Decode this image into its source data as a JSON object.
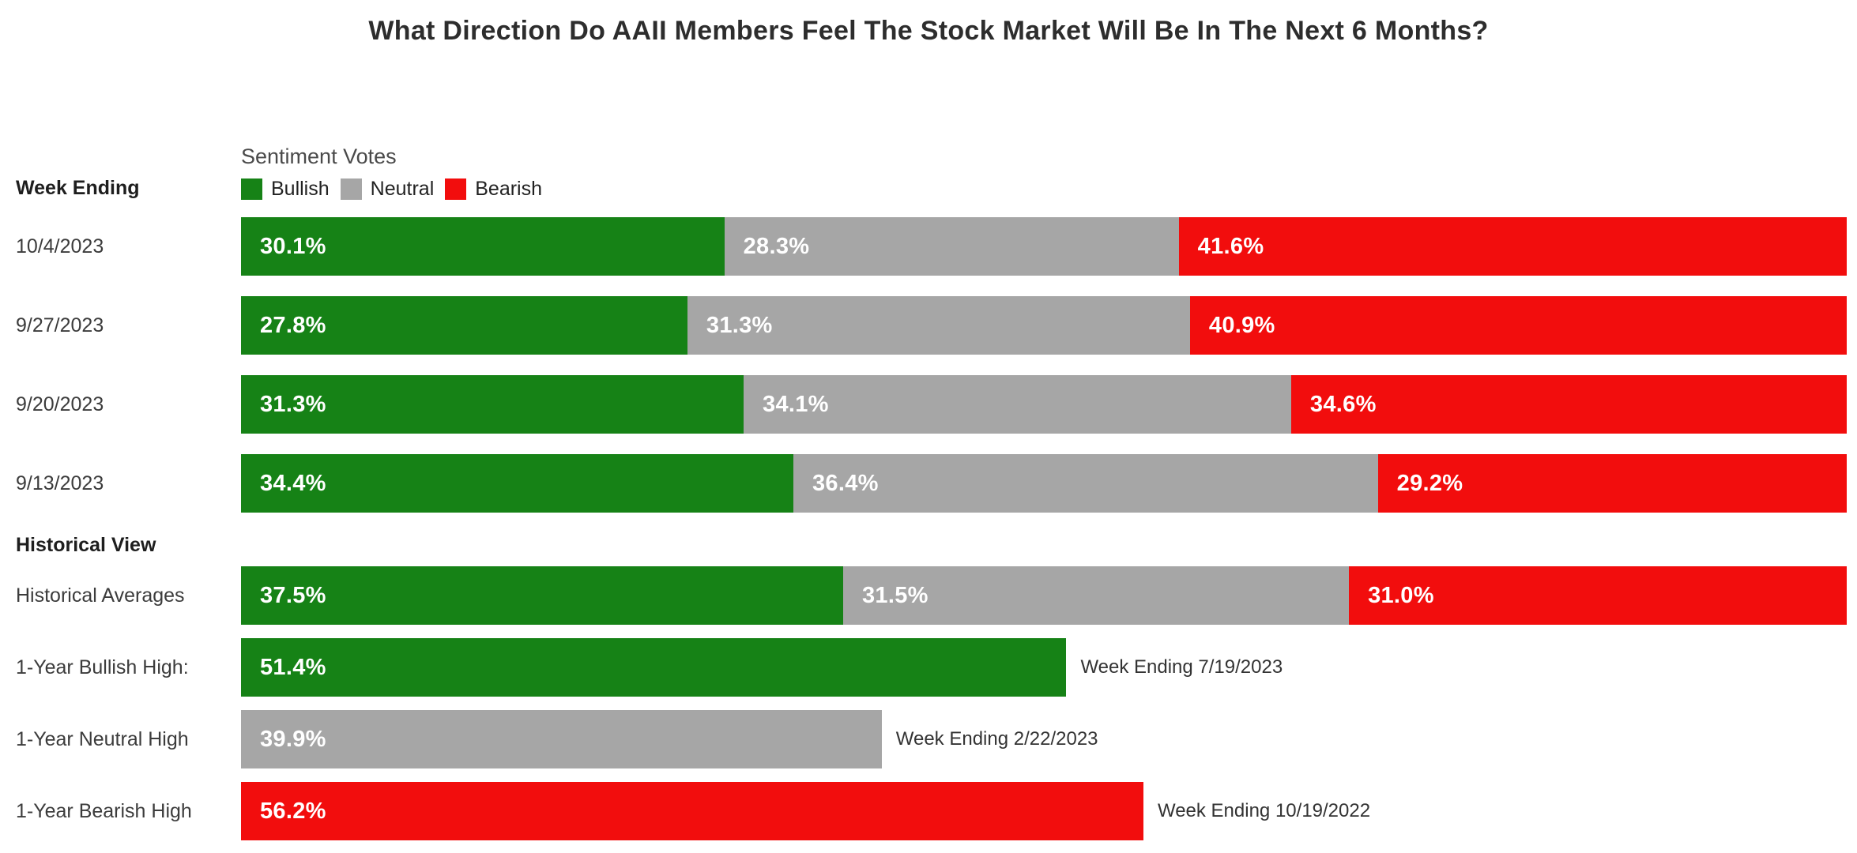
{
  "labels": {
    "week_ending": "Week Ending",
    "historical_view": "Historical View"
  },
  "chart_data": {
    "type": "bar",
    "orientation": "horizontal",
    "stacked": true,
    "grid": false,
    "xlim": [
      0,
      100
    ],
    "title": "What Direction Do AAII Members Feel The Stock Market Will Be In The Next 6 Months?",
    "legend_title": "Sentiment Votes",
    "legend_position": "top",
    "value_suffix": "%",
    "series": [
      {
        "key": "bullish",
        "name": "Bullish",
        "color": "#168216"
      },
      {
        "key": "neutral",
        "name": "Neutral",
        "color": "#a6a6a6"
      },
      {
        "key": "bearish",
        "name": "Bearish",
        "color": "#f20d0d"
      }
    ],
    "week_rows": [
      {
        "label": "10/4/2023",
        "bullish": 30.1,
        "neutral": 28.3,
        "bearish": 41.6
      },
      {
        "label": "9/27/2023",
        "bullish": 27.8,
        "neutral": 31.3,
        "bearish": 40.9
      },
      {
        "label": "9/20/2023",
        "bullish": 31.3,
        "neutral": 34.1,
        "bearish": 34.6
      },
      {
        "label": "9/13/2023",
        "bullish": 34.4,
        "neutral": 36.4,
        "bearish": 29.2
      }
    ],
    "historical_rows": [
      {
        "label": "Historical Averages",
        "kind": "stacked",
        "bullish": 37.5,
        "neutral": 31.5,
        "bearish": 31.0
      },
      {
        "label": "1-Year Bullish High:",
        "kind": "single",
        "series": "bullish",
        "value": 51.4,
        "annotation": "Week Ending 7/19/2023"
      },
      {
        "label": "1-Year Neutral High",
        "kind": "single",
        "series": "neutral",
        "value": 39.9,
        "annotation": "Week Ending 2/22/2023"
      },
      {
        "label": "1-Year Bearish High",
        "kind": "single",
        "series": "bearish",
        "value": 56.2,
        "annotation": "Week Ending 10/19/2022"
      }
    ]
  }
}
